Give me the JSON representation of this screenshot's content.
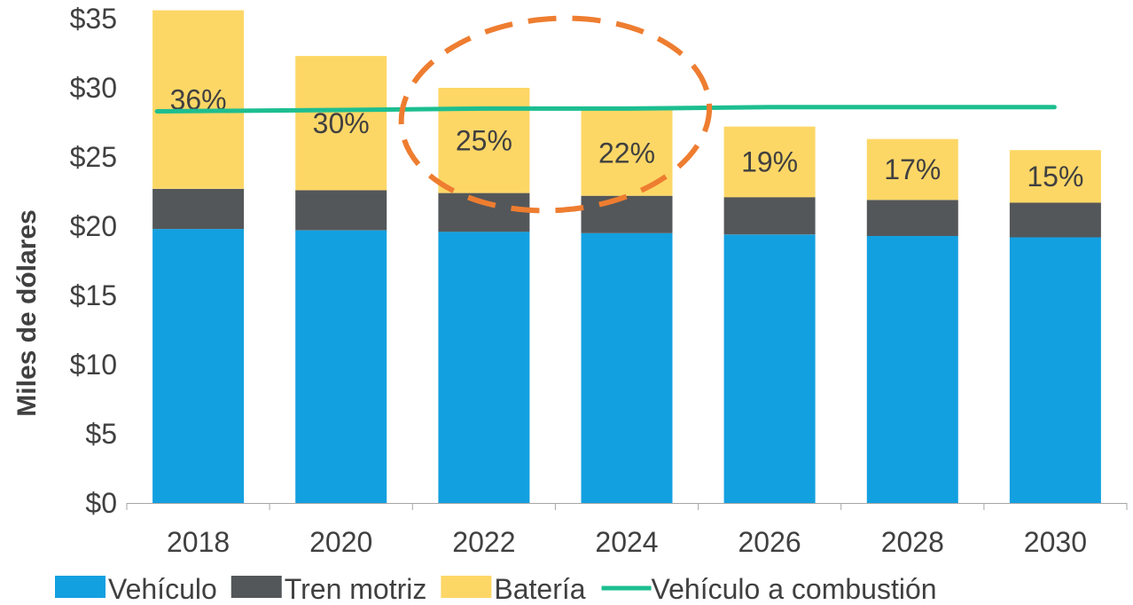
{
  "chart_data": {
    "type": "bar",
    "stacked": true,
    "categories": [
      "2018",
      "2020",
      "2022",
      "2024",
      "2026",
      "2028",
      "2030"
    ],
    "series": [
      {
        "name": "Vehículo",
        "values": [
          19.8,
          19.7,
          19.6,
          19.5,
          19.4,
          19.3,
          19.2
        ],
        "color": "#13a0e0"
      },
      {
        "name": "Tren motriz",
        "values": [
          2.9,
          2.9,
          2.8,
          2.7,
          2.7,
          2.6,
          2.5
        ],
        "color": "#545759"
      },
      {
        "name": "Batería",
        "values": [
          12.9,
          9.7,
          7.6,
          6.2,
          5.1,
          4.4,
          3.8
        ],
        "color": "#fdd766",
        "labels": [
          "36%",
          "30%",
          "25%",
          "22%",
          "19%",
          "17%",
          "15%"
        ]
      }
    ],
    "line_series": {
      "name": "Vehículo a combustión",
      "values": [
        28.3,
        28.4,
        28.5,
        28.5,
        28.6,
        28.6,
        28.6
      ],
      "color": "#1dbe90"
    },
    "ylabel": "Miles de dólares",
    "xlabel": "",
    "ylim": [
      0,
      35
    ],
    "yticks": [
      "$0",
      "$5",
      "$10",
      "$15",
      "$20",
      "$25",
      "$30",
      "$35"
    ],
    "annotation": {
      "type": "dashed-ellipse",
      "around": "2022",
      "color": "#ee7d30"
    },
    "grid": false,
    "legend_position": "bottom"
  }
}
